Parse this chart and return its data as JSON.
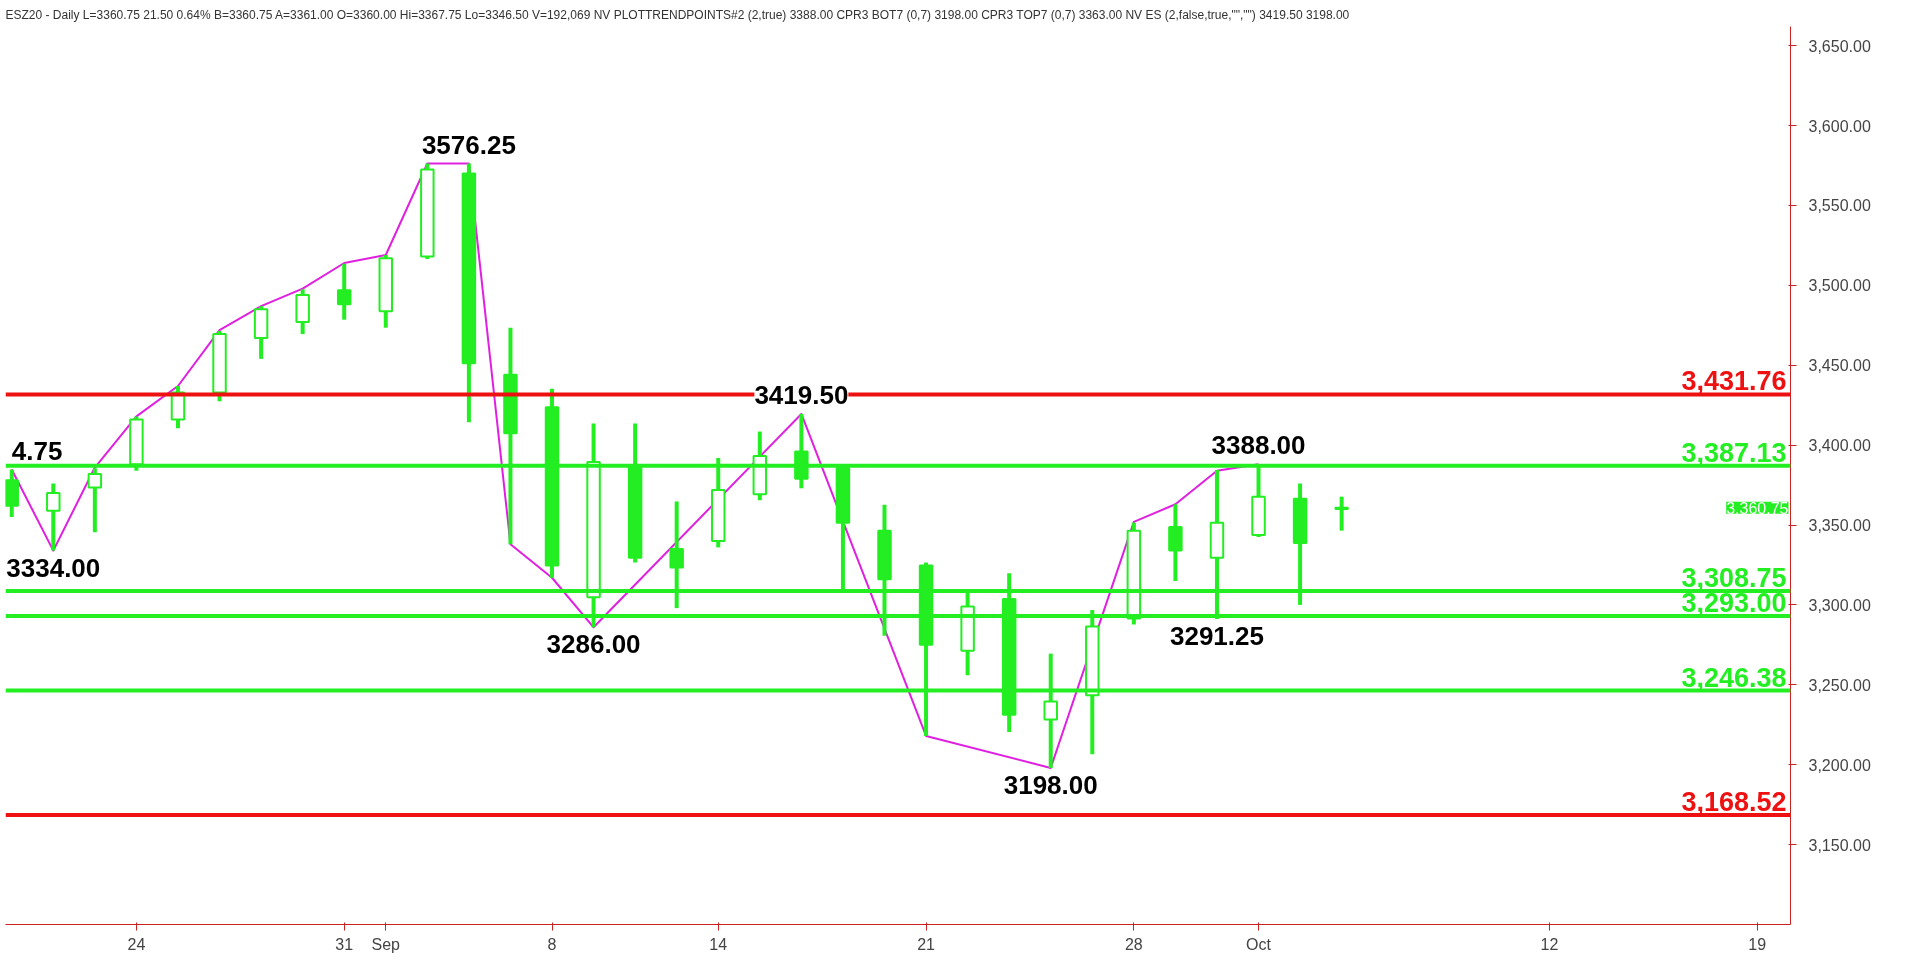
{
  "chart_data": {
    "type": "candlestick",
    "title": "ESZ20 - Daily L=3360.75 21.50 0.64% B=3360.75 A=3361.00 O=3360.00 Hi=3367.75 Lo=3346.50 V=192,069 NV PLOTTRENDPOINTS#2 (2,true) 3388.00 CPR3 BOT7 (0,7) 3198.00 CPR3 TOP7 (0,7) 3363.00 NV ES (2,false,true,\"\",\"\") 3419.50 3198.00",
    "categories": [
      null,
      null,
      null,
      "24",
      null,
      null,
      null,
      null,
      "31",
      "Sep",
      null,
      null,
      null,
      "8",
      null,
      null,
      null,
      "14",
      null,
      null,
      null,
      null,
      "21",
      null,
      null,
      null,
      null,
      "28",
      null,
      null,
      "Oct",
      null,
      null,
      null,
      null,
      null,
      null,
      "12",
      null,
      null,
      null,
      null,
      "19"
    ],
    "series": [
      {
        "color": "#22ee22",
        "ohlc": [
          [
            3378,
            3384.75,
            3355,
            3362
          ],
          [
            3359,
            3376,
            3334,
            3370
          ],
          [
            3373.5,
            3385.5,
            3345.5,
            3382
          ],
          [
            3388,
            3418,
            3384,
            3416
          ],
          [
            3416,
            3437,
            3410.5,
            3433
          ],
          [
            3433,
            3471.5,
            3427.5,
            3469.5
          ],
          [
            3467,
            3487,
            3454,
            3485
          ],
          [
            3477,
            3497.5,
            3469.5,
            3494
          ],
          [
            3497,
            3513.5,
            3478.5,
            3488.25
          ],
          [
            3483.75,
            3519,
            3473.5,
            3517
          ],
          [
            3518,
            3576.25,
            3516.5,
            3572.5
          ],
          [
            3570,
            3576.25,
            3414.25,
            3451.25
          ],
          [
            3444,
            3473.5,
            3338,
            3407.5
          ],
          [
            3423.75,
            3435.25,
            3317,
            3324.75
          ],
          [
            3304.75,
            3413.5,
            3286,
            3389.5
          ],
          [
            3387.5,
            3413.5,
            3326.5,
            3329.5
          ],
          [
            3335,
            3364.75,
            3298,
            3323.5
          ],
          [
            3340,
            3392,
            3336,
            3372
          ],
          [
            3369.25,
            3408.5,
            3365.5,
            3393.25
          ],
          [
            3396,
            3419.5,
            3373,
            3379
          ],
          [
            3385.75,
            3386.75,
            3309.5,
            3351.5
          ],
          [
            3346.5,
            3362.75,
            3280.75,
            3316
          ],
          [
            3324.75,
            3326.5,
            3218,
            3275
          ],
          [
            3271.25,
            3308.25,
            3256,
            3299
          ],
          [
            3303.75,
            3319.75,
            3220.5,
            3231.25
          ],
          [
            3228.25,
            3269.5,
            3198,
            3239.5
          ],
          [
            3243.5,
            3296.75,
            3206.5,
            3286.5
          ],
          [
            3291.5,
            3351.5,
            3287.75,
            3346.5
          ],
          [
            3348.75,
            3363,
            3315,
            3334
          ],
          [
            3329.5,
            3384.5,
            3291.25,
            3351.5
          ],
          [
            3343.75,
            3388,
            3342.5,
            3367.75
          ],
          [
            3366.5,
            3376,
            3300,
            3338.75
          ],
          [
            3360,
            3367.75,
            3346.5,
            3360.75
          ],
          null,
          null,
          null,
          null,
          null,
          null,
          null,
          null,
          null,
          null
        ]
      },
      {
        "type": "line",
        "color": "#e020e0",
        "values": [
          3384.75,
          3334,
          3386,
          3418,
          3437,
          3472,
          3487,
          3498,
          3514,
          3519,
          3576.25,
          3576.25,
          3338,
          3317,
          3286,
          null,
          null,
          null,
          null,
          3419.5,
          null,
          null,
          3218,
          null,
          null,
          3198,
          null,
          3352,
          3363,
          3384,
          3388,
          null,
          null,
          null,
          null,
          null,
          null,
          null,
          null,
          null,
          null,
          null,
          null
        ]
      }
    ],
    "ylim": [
      3100,
      3662
    ],
    "yticks": [
      {
        "value": 3150,
        "label": "3,150.00"
      },
      {
        "value": 3200,
        "label": "3,200.00"
      },
      {
        "value": 3250,
        "label": "3,250.00"
      },
      {
        "value": 3300,
        "label": "3,300.00"
      },
      {
        "value": 3350,
        "label": "3,350.00"
      },
      {
        "value": 3400,
        "label": "3,400.00"
      },
      {
        "value": 3450,
        "label": "3,450.00"
      },
      {
        "value": 3500,
        "label": "3,500.00"
      },
      {
        "value": 3550,
        "label": "3,550.00"
      },
      {
        "value": 3600,
        "label": "3,600.00"
      },
      {
        "value": 3650,
        "label": "3,650.00"
      }
    ],
    "ref_lines": [
      {
        "axis": "y",
        "value": 3431.76,
        "label": "3,431.76",
        "color": "#ee1111"
      },
      {
        "axis": "y",
        "value": 3387.13,
        "label": "3,387.13",
        "color": "#22ee22"
      },
      {
        "axis": "y",
        "value": 3308.75,
        "label": "3,308.75",
        "color": "#22ee22"
      },
      {
        "axis": "y",
        "value": 3293.0,
        "label": "3,293.00",
        "color": "#22ee22"
      },
      {
        "axis": "y",
        "value": 3246.38,
        "label": "3,246.38",
        "color": "#22ee22"
      },
      {
        "axis": "y",
        "value": 3168.52,
        "label": "3,168.52",
        "color": "#ee1111"
      }
    ],
    "annotations": [
      {
        "text": "4.75",
        "y": 3384.75
      },
      {
        "text": "3334.00",
        "y": 3334
      },
      {
        "text": "3576.25",
        "y": 3576.25
      },
      {
        "text": "3286.00",
        "y": 3286
      },
      {
        "text": "3419.50",
        "y": 3419.5
      },
      {
        "text": "3198.00",
        "y": 3198
      },
      {
        "text": "3291.25",
        "y": 3291.25
      },
      {
        "text": "3388.00",
        "y": 3388
      },
      "3,360.75"
    ]
  }
}
